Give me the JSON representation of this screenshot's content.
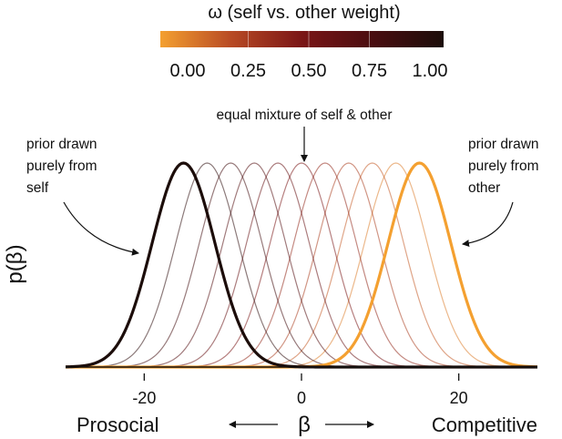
{
  "chart_data": {
    "type": "line",
    "colorbar": {
      "title": "ω (self vs. other weight)",
      "ticks": [
        "0.00",
        "0.25",
        "0.50",
        "0.75",
        "1.00"
      ],
      "tick_values": [
        0,
        0.25,
        0.5,
        0.75,
        1.0
      ],
      "range": [
        0,
        1
      ],
      "colors": [
        "#f4a030",
        "#b84a24",
        "#7a1516",
        "#4a0d10",
        "#1c0d0a"
      ]
    },
    "xlabel": "β",
    "ylabel": "p(β)",
    "x_left_label": "Prosocial",
    "x_right_label": "Competitive",
    "xticks": [
      -20,
      0,
      20
    ],
    "xlim": [
      -30,
      30
    ],
    "grid": false,
    "curve_sd": 4,
    "series": [
      {
        "omega": 0.0,
        "mean": 15,
        "emphasis": true
      },
      {
        "omega": 0.1,
        "mean": 12,
        "emphasis": false
      },
      {
        "omega": 0.2,
        "mean": 9,
        "emphasis": false
      },
      {
        "omega": 0.3,
        "mean": 6,
        "emphasis": false
      },
      {
        "omega": 0.4,
        "mean": 3,
        "emphasis": false
      },
      {
        "omega": 0.5,
        "mean": 0,
        "emphasis": false
      },
      {
        "omega": 0.6,
        "mean": -3,
        "emphasis": false
      },
      {
        "omega": 0.7,
        "mean": -6,
        "emphasis": false
      },
      {
        "omega": 0.8,
        "mean": -9,
        "emphasis": false
      },
      {
        "omega": 0.9,
        "mean": -12,
        "emphasis": false
      },
      {
        "omega": 1.0,
        "mean": -15,
        "emphasis": true
      }
    ],
    "annotations": {
      "middle": "equal mixture of self & other",
      "left": [
        "prior drawn",
        "purely from",
        "self"
      ],
      "right": [
        "prior drawn",
        "purely from",
        "other"
      ]
    }
  }
}
